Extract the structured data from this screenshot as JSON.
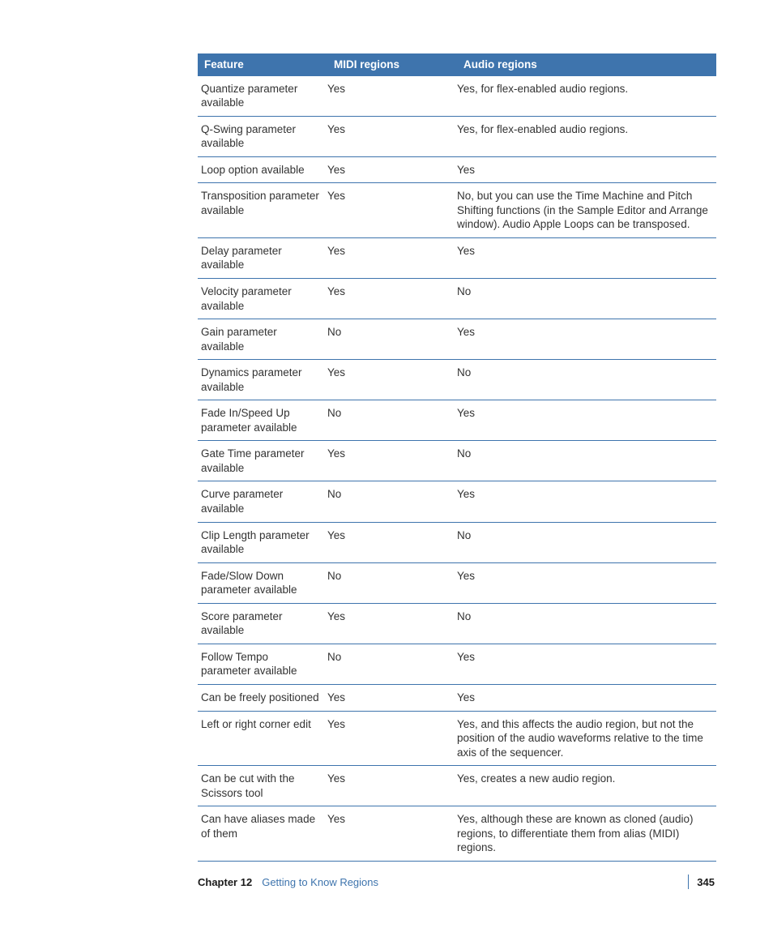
{
  "table": {
    "header_bg": "#3e74ad",
    "header_fg": "#ffffff",
    "border_color": "#3e74ad",
    "columns": [
      "Feature",
      "MIDI regions",
      "Audio regions"
    ],
    "rows": [
      [
        "Quantize parameter available",
        "Yes",
        "Yes, for flex-enabled audio regions."
      ],
      [
        "Q-Swing parameter available",
        "Yes",
        "Yes, for flex-enabled audio regions."
      ],
      [
        "Loop option available",
        "Yes",
        "Yes"
      ],
      [
        "Transposition parameter available",
        "Yes",
        "No, but you can use the Time Machine and Pitch Shifting functions (in the Sample Editor and Arrange window). Audio Apple Loops can be transposed."
      ],
      [
        "Delay parameter available",
        "Yes",
        "Yes"
      ],
      [
        "Velocity parameter available",
        "Yes",
        "No"
      ],
      [
        "Gain parameter available",
        "No",
        "Yes"
      ],
      [
        "Dynamics parameter available",
        "Yes",
        "No"
      ],
      [
        "Fade In/Speed Up parameter available",
        "No",
        "Yes"
      ],
      [
        "Gate Time parameter available",
        "Yes",
        "No"
      ],
      [
        "Curve parameter available",
        "No",
        "Yes"
      ],
      [
        "Clip Length parameter available",
        "Yes",
        "No"
      ],
      [
        "Fade/Slow Down parameter available",
        "No",
        "Yes"
      ],
      [
        "Score parameter available",
        "Yes",
        "No"
      ],
      [
        "Follow Tempo parameter available",
        "No",
        "Yes"
      ],
      [
        "Can be freely positioned",
        "Yes",
        "Yes"
      ],
      [
        "Left or right corner edit",
        "Yes",
        "Yes, and this affects the audio region, but not the position of the audio waveforms relative to the time axis of the sequencer."
      ],
      [
        "Can be cut with the Scissors tool",
        "Yes",
        "Yes, creates a new audio region."
      ],
      [
        "Can have aliases made of them",
        "Yes",
        "Yes, although these are known as cloned (audio) regions, to differentiate them from alias (MIDI) regions."
      ]
    ]
  },
  "footer": {
    "chapter_label": "Chapter 12",
    "chapter_title": "Getting to Know Regions",
    "page_number": "345"
  }
}
